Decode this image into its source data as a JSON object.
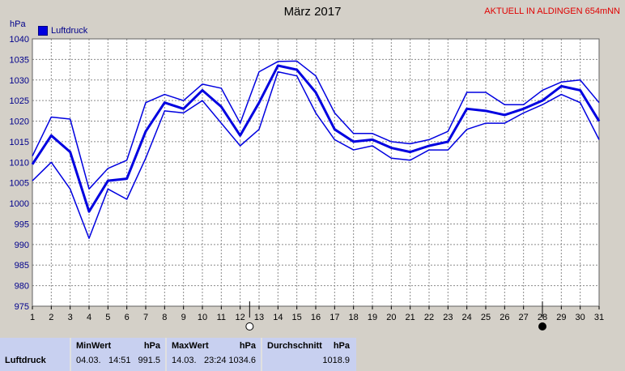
{
  "header": {
    "title": "März 2017",
    "location": "AKTUELL IN ALDINGEN 654mNN",
    "unit": "hPa",
    "legend_label": "Luftdruck"
  },
  "chart_data": {
    "type": "line",
    "title": "März 2017",
    "ylabel": "hPa",
    "ylim": [
      975,
      1040
    ],
    "yticks": [
      975,
      980,
      985,
      990,
      995,
      1000,
      1005,
      1010,
      1015,
      1020,
      1025,
      1030,
      1035,
      1040
    ],
    "x": [
      1,
      2,
      3,
      4,
      5,
      6,
      7,
      8,
      9,
      10,
      11,
      12,
      13,
      14,
      15,
      16,
      17,
      18,
      19,
      20,
      21,
      22,
      23,
      24,
      25,
      26,
      27,
      28,
      29,
      30,
      31
    ],
    "grid": true,
    "legend": "top-left",
    "colors": {
      "series": "#0000e0",
      "grid": "#8a8a8a",
      "axis_text": "#00008b"
    },
    "series": [
      {
        "name": "Luftdruck",
        "role": "max",
        "values": [
          1011.5,
          1021,
          1020.5,
          1003.5,
          1008.5,
          1010.5,
          1024.5,
          1026.5,
          1025,
          1029,
          1028,
          1019.5,
          1032,
          1034.5,
          1034.6,
          1031,
          1022,
          1017,
          1017,
          1015,
          1014.5,
          1015.5,
          1017.5,
          1027,
          1027,
          1024,
          1024,
          1027.5,
          1029.5,
          1030,
          1024.5
        ]
      },
      {
        "name": "Luftdruck",
        "role": "mean",
        "values": [
          1009.5,
          1016.5,
          1012.5,
          998,
          1005.5,
          1006,
          1017.5,
          1024.5,
          1023,
          1027.5,
          1023.5,
          1016.5,
          1024.5,
          1033.5,
          1032.5,
          1027,
          1018,
          1015,
          1015.5,
          1013.5,
          1012.5,
          1014,
          1015,
          1023,
          1022.5,
          1021.5,
          1023,
          1025,
          1028.5,
          1027.5,
          1020
        ]
      },
      {
        "name": "Luftdruck",
        "role": "min",
        "values": [
          1005.5,
          1010,
          1003.5,
          991.5,
          1003.5,
          1001,
          1011,
          1022.5,
          1022,
          1025,
          1019.5,
          1014,
          1018,
          1032,
          1031,
          1022,
          1015.5,
          1013,
          1014,
          1011,
          1010.5,
          1013,
          1013,
          1018,
          1019.5,
          1019.5,
          1022,
          1024,
          1026.5,
          1024.5,
          1015.5
        ]
      }
    ],
    "markers": [
      {
        "day": 12.5,
        "type": "new-moon"
      },
      {
        "day": 28,
        "type": "full-moon"
      }
    ]
  },
  "stats": {
    "row_label": "Luftdruck",
    "min": {
      "header": "MinWert",
      "unit": "hPa",
      "date": "04.03.",
      "time": "14:51",
      "value": "991.5"
    },
    "max": {
      "header": "MaxWert",
      "unit": "hPa",
      "date": "14.03.",
      "time": "23:24",
      "value": "1034.6"
    },
    "avg": {
      "header": "Durchschnitt",
      "unit": "hPa",
      "value": "1018.9"
    }
  }
}
